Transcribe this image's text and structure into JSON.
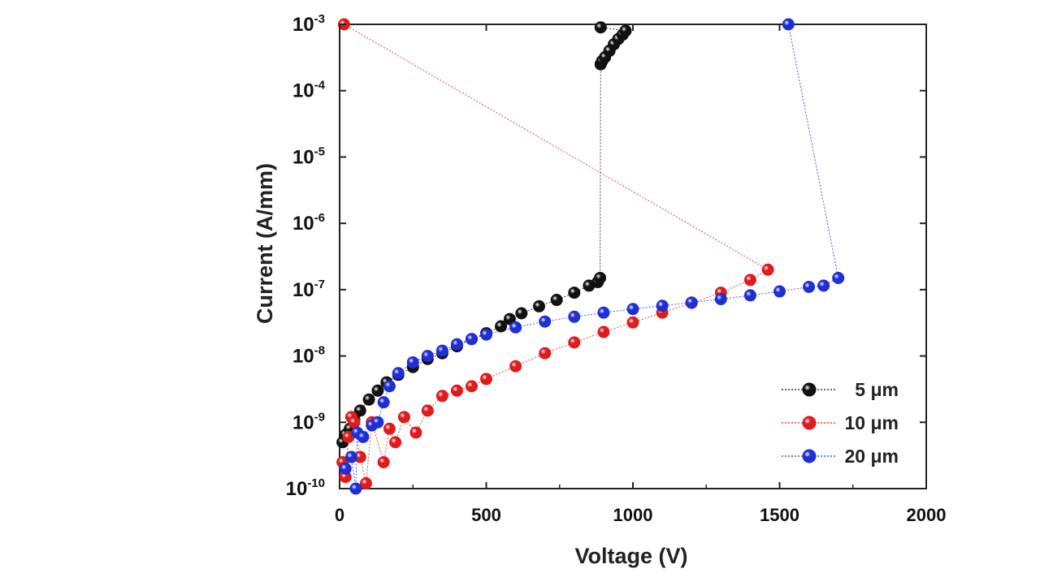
{
  "chart_data": {
    "type": "scatter",
    "title": "",
    "xlabel": "Voltage (V)",
    "ylabel": "Current (A/mm)",
    "xlim": [
      0,
      2000
    ],
    "ylim_log10": [
      -10,
      -3
    ],
    "y_scale": "log",
    "x_ticks": [
      0,
      500,
      1000,
      1500,
      2000
    ],
    "x_tick_labels": [
      "0",
      "500",
      "1000",
      "1500",
      "2000"
    ],
    "y_tick_labels": [
      {
        "base": "10",
        "exp": "-3"
      },
      {
        "base": "10",
        "exp": "-4"
      },
      {
        "base": "10",
        "exp": "-5"
      },
      {
        "base": "10",
        "exp": "-6"
      },
      {
        "base": "10",
        "exp": "-7"
      },
      {
        "base": "10",
        "exp": "-8"
      },
      {
        "base": "10",
        "exp": "-9"
      },
      {
        "base": "10",
        "exp": "-10"
      }
    ],
    "grid": false,
    "legend_position": "bottom-right",
    "series": [
      {
        "name": "5 μm",
        "color": "#111111",
        "points": [
          [
            10,
            5e-10
          ],
          [
            20,
            6.5e-10
          ],
          [
            35,
            8e-10
          ],
          [
            50,
            1.1e-09
          ],
          [
            70,
            1.5e-09
          ],
          [
            100,
            2.2e-09
          ],
          [
            130,
            3e-09
          ],
          [
            160,
            4e-09
          ],
          [
            200,
            5.2e-09
          ],
          [
            250,
            6.8e-09
          ],
          [
            300,
            9e-09
          ],
          [
            350,
            1.1e-08
          ],
          [
            400,
            1.4e-08
          ],
          [
            450,
            1.8e-08
          ],
          [
            500,
            2.2e-08
          ],
          [
            550,
            2.8e-08
          ],
          [
            580,
            3.6e-08
          ],
          [
            620,
            4.4e-08
          ],
          [
            680,
            5.6e-08
          ],
          [
            740,
            7e-08
          ],
          [
            800,
            9e-08
          ],
          [
            850,
            1.15e-07
          ],
          [
            880,
            1.3e-07
          ],
          [
            888,
            1.5e-07
          ],
          [
            890,
            0.00025
          ],
          [
            895,
            0.00028
          ],
          [
            905,
            0.00032
          ],
          [
            920,
            0.0004
          ],
          [
            935,
            0.0005
          ],
          [
            950,
            0.0006
          ],
          [
            965,
            0.0007
          ],
          [
            975,
            0.0008
          ],
          [
            890,
            0.0009
          ]
        ]
      },
      {
        "name": "10 μm",
        "color": "#e01b1b",
        "points": [
          [
            10,
            2.5e-10
          ],
          [
            20,
            1.5e-10
          ],
          [
            30,
            6e-10
          ],
          [
            40,
            1.2e-09
          ],
          [
            50,
            1e-09
          ],
          [
            70,
            3e-10
          ],
          [
            90,
            1.2e-10
          ],
          [
            110,
            1e-09
          ],
          [
            150,
            2.5e-10
          ],
          [
            170,
            8e-10
          ],
          [
            190,
            5e-10
          ],
          [
            220,
            1.2e-09
          ],
          [
            260,
            7e-10
          ],
          [
            300,
            1.5e-09
          ],
          [
            350,
            2.5e-09
          ],
          [
            400,
            3e-09
          ],
          [
            450,
            3.5e-09
          ],
          [
            500,
            4.5e-09
          ],
          [
            600,
            7e-09
          ],
          [
            700,
            1.1e-08
          ],
          [
            800,
            1.6e-08
          ],
          [
            900,
            2.3e-08
          ],
          [
            1000,
            3.2e-08
          ],
          [
            1100,
            4.5e-08
          ],
          [
            1200,
            6.3e-08
          ],
          [
            1300,
            9e-08
          ],
          [
            1400,
            1.4e-07
          ],
          [
            1460,
            2e-07
          ],
          [
            15,
            0.001
          ]
        ]
      },
      {
        "name": "20 μm",
        "color": "#1f2fd6",
        "points": [
          [
            20,
            2e-10
          ],
          [
            40,
            3e-10
          ],
          [
            55,
            1e-10
          ],
          [
            60,
            7e-10
          ],
          [
            80,
            6e-10
          ],
          [
            110,
            9e-10
          ],
          [
            130,
            1e-09
          ],
          [
            150,
            2e-09
          ],
          [
            170,
            3.5e-09
          ],
          [
            200,
            5.5e-09
          ],
          [
            250,
            8e-09
          ],
          [
            300,
            1e-08
          ],
          [
            350,
            1.2e-08
          ],
          [
            400,
            1.5e-08
          ],
          [
            450,
            1.8e-08
          ],
          [
            500,
            2.1e-08
          ],
          [
            600,
            2.7e-08
          ],
          [
            700,
            3.3e-08
          ],
          [
            800,
            3.9e-08
          ],
          [
            900,
            4.5e-08
          ],
          [
            1000,
            5.1e-08
          ],
          [
            1100,
            5.7e-08
          ],
          [
            1200,
            6.4e-08
          ],
          [
            1300,
            7.2e-08
          ],
          [
            1400,
            8.2e-08
          ],
          [
            1500,
            9.4e-08
          ],
          [
            1600,
            1.1e-07
          ],
          [
            1650,
            1.15e-07
          ],
          [
            1700,
            1.5e-07
          ],
          [
            1530,
            0.001
          ]
        ]
      }
    ]
  }
}
